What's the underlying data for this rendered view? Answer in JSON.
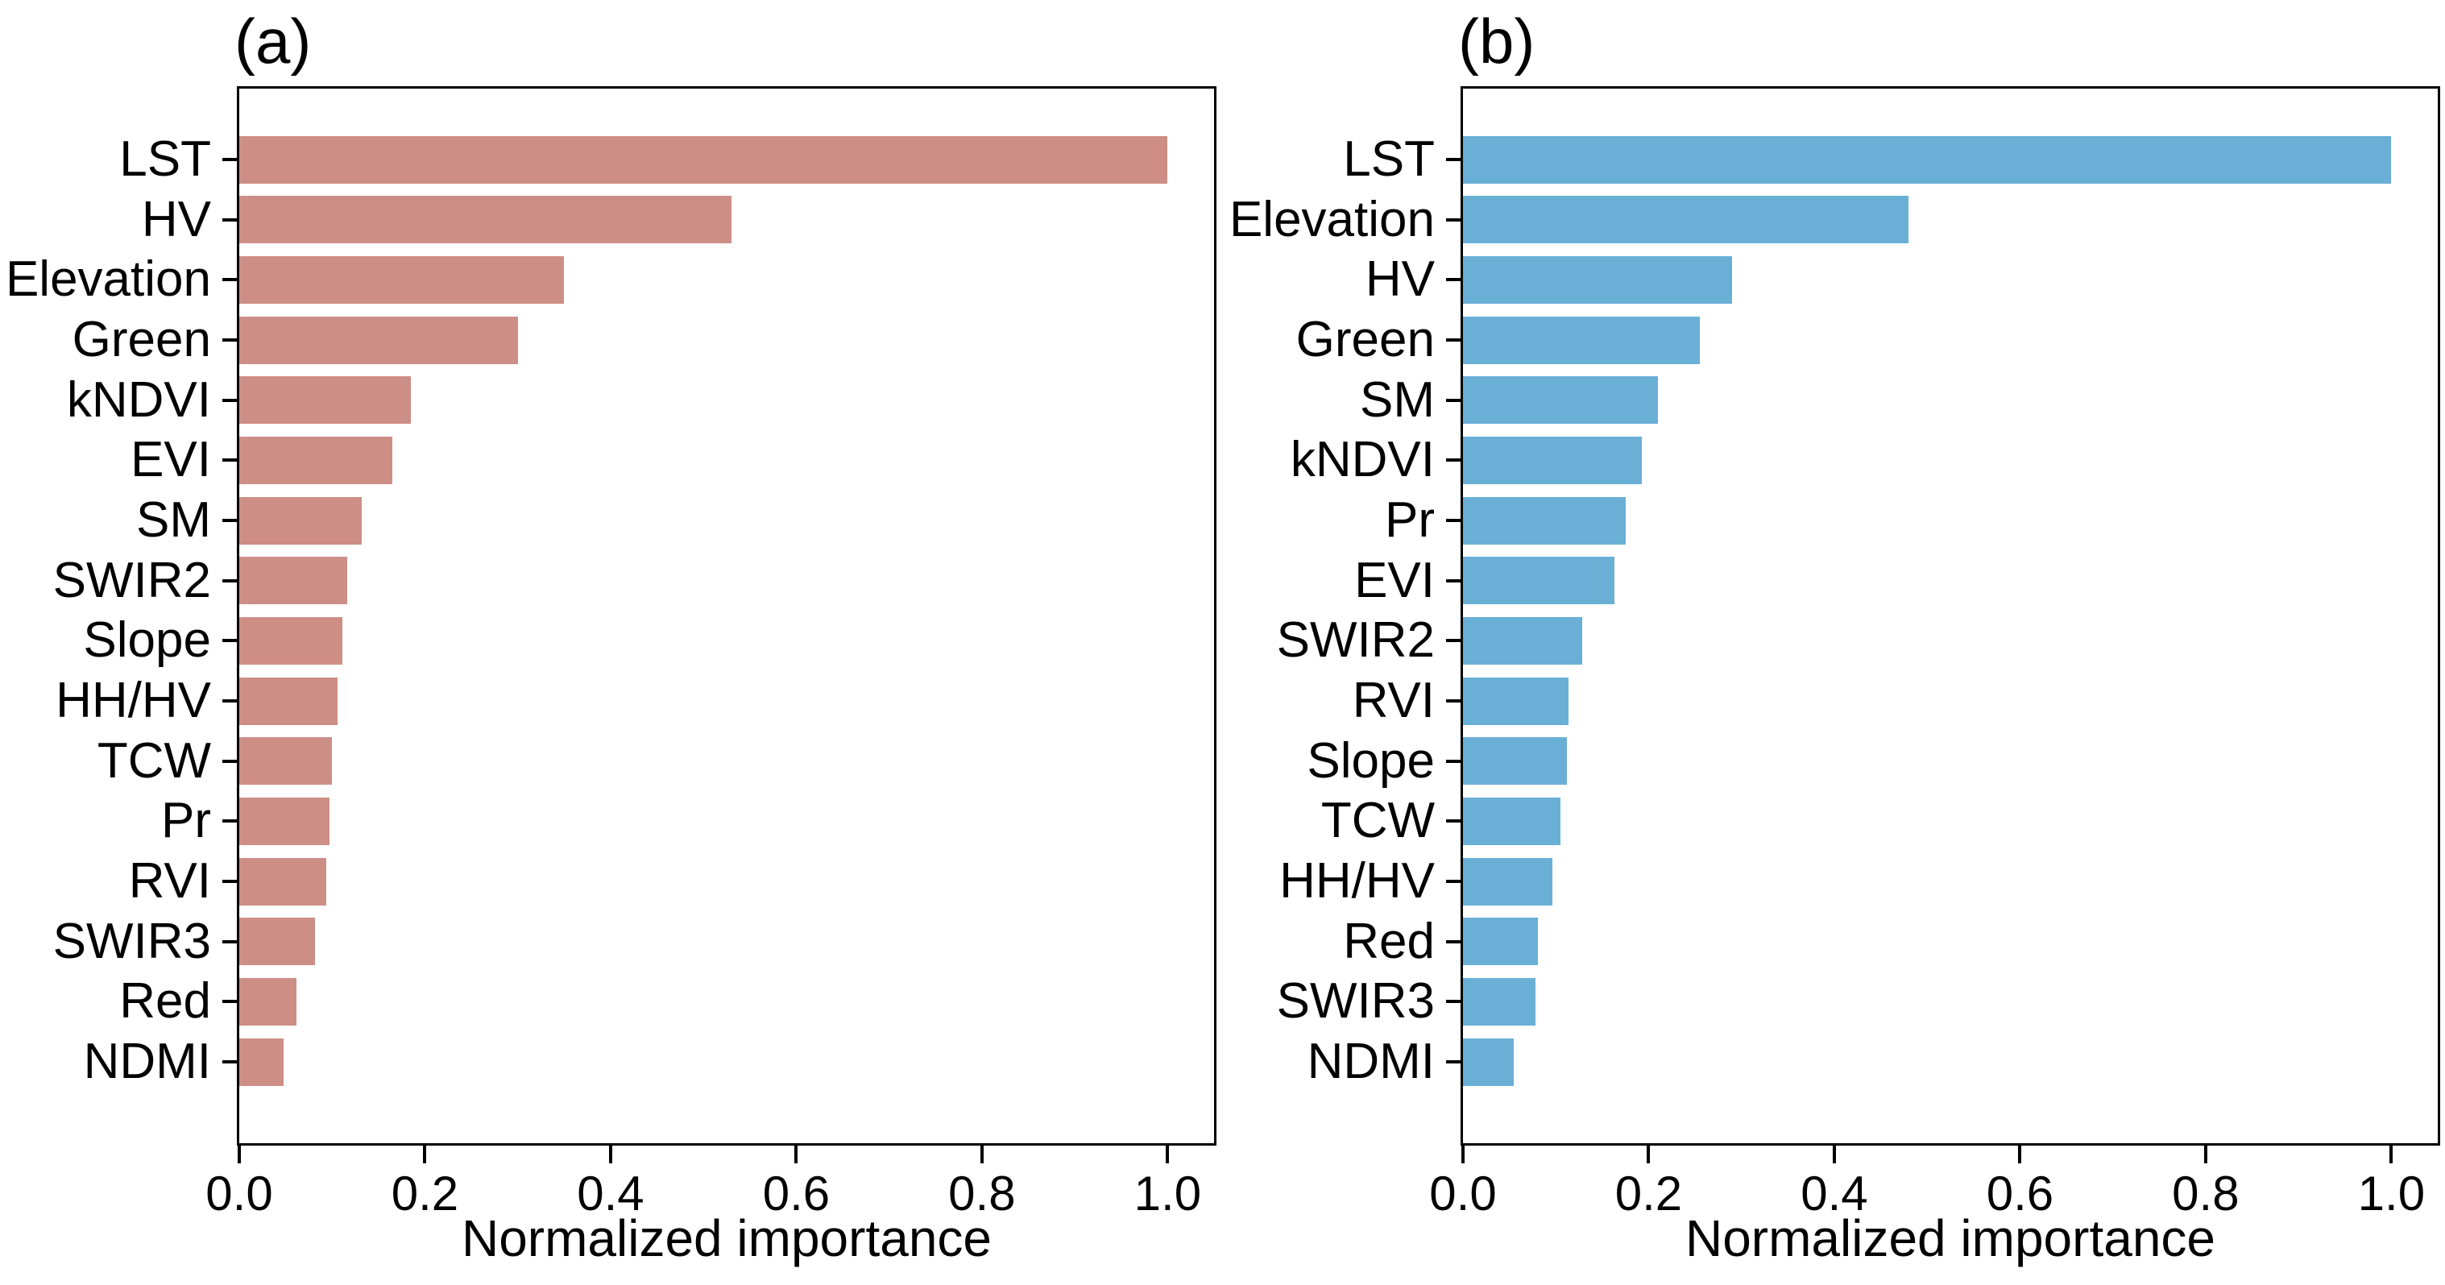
{
  "chart_data": [
    {
      "type": "bar",
      "orientation": "horizontal",
      "panel_label": "(a)",
      "xlabel": "Normalized importance",
      "xlim": [
        0,
        1.05
      ],
      "grid": false,
      "legend": null,
      "bar_color": "#cd8e86",
      "axis_color": "#000000",
      "x_tick_values": [
        0.0,
        0.2,
        0.4,
        0.6,
        0.8,
        1.0
      ],
      "x_tick_labels": [
        "0.0",
        "0.2",
        "0.4",
        "0.6",
        "0.8",
        "1.0"
      ],
      "categories": [
        "LST",
        "HV",
        "Elevation",
        "Green",
        "kNDVI",
        "EVI",
        "SM",
        "SWIR2",
        "Slope",
        "HH/HV",
        "TCW",
        "Pr",
        "RVI",
        "SWIR3",
        "Red",
        "NDMI"
      ],
      "values": [
        1.0,
        0.53,
        0.35,
        0.3,
        0.185,
        0.165,
        0.132,
        0.116,
        0.111,
        0.106,
        0.1,
        0.097,
        0.094,
        0.082,
        0.062,
        0.048
      ]
    },
    {
      "type": "bar",
      "orientation": "horizontal",
      "panel_label": "(b)",
      "xlabel": "Normalized importance",
      "xlim": [
        0,
        1.05
      ],
      "grid": false,
      "legend": null,
      "bar_color": "#69afd6",
      "axis_color": "#000000",
      "x_tick_values": [
        0.0,
        0.2,
        0.4,
        0.6,
        0.8,
        1.0
      ],
      "x_tick_labels": [
        "0.0",
        "0.2",
        "0.4",
        "0.6",
        "0.8",
        "1.0"
      ],
      "categories": [
        "LST",
        "Elevation",
        "HV",
        "Green",
        "SM",
        "kNDVI",
        "Pr",
        "EVI",
        "SWIR2",
        "RVI",
        "Slope",
        "TCW",
        "HH/HV",
        "Red",
        "SWIR3",
        "NDMI"
      ],
      "values": [
        1.0,
        0.48,
        0.29,
        0.255,
        0.21,
        0.193,
        0.175,
        0.163,
        0.128,
        0.114,
        0.112,
        0.105,
        0.096,
        0.081,
        0.078,
        0.055
      ]
    }
  ]
}
